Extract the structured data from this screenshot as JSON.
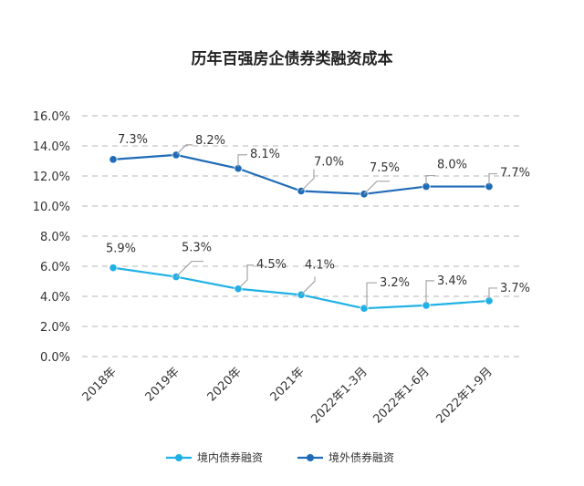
{
  "chart_data": {
    "type": "line",
    "title": "历年百强房企债券类融资成本",
    "categories": [
      "2018年",
      "2019年",
      "2020年",
      "2021年",
      "2022年1-3月",
      "2022年1-6月",
      "2022年1-9月"
    ],
    "y_ticks": [
      "0.0%",
      "2.0%",
      "4.0%",
      "6.0%",
      "8.0%",
      "10.0%",
      "12.0%",
      "14.0%",
      "16.0%"
    ],
    "ylim": [
      0,
      16
    ],
    "grid": true,
    "legend_position": "bottom",
    "series": [
      {
        "name": "境内债券融资",
        "color": "#1fb1e6",
        "values": [
          5.9,
          5.3,
          4.5,
          4.1,
          3.2,
          3.4,
          3.7
        ],
        "labels": [
          "5.9%",
          "5.3%",
          "4.5%",
          "4.1%",
          "3.2%",
          "3.4%",
          "3.7%"
        ],
        "plotted": [
          5.9,
          5.3,
          4.5,
          4.1,
          3.2,
          3.4,
          3.7
        ]
      },
      {
        "name": "境外债券融资",
        "color": "#1f6bb8",
        "values": [
          7.3,
          8.2,
          8.1,
          7.0,
          7.5,
          8.0,
          7.7
        ],
        "labels": [
          "7.3%",
          "8.2%",
          "8.1%",
          "7.0%",
          "7.5%",
          "8.0%",
          "7.7%"
        ],
        "plotted": [
          13.1,
          13.4,
          12.5,
          11.0,
          10.8,
          11.3,
          11.3
        ]
      }
    ]
  }
}
